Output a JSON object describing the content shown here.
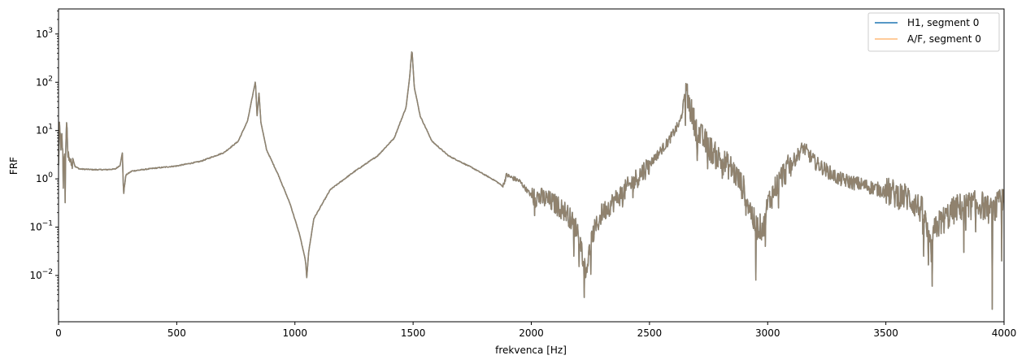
{
  "chart_data": {
    "type": "line",
    "xlabel": "frekvenca [Hz]",
    "ylabel": "FRF",
    "xlim": [
      0,
      4000
    ],
    "ylim": [
      0.0011,
      3300
    ],
    "yscale": "log",
    "xticks": [
      {
        "value": 0,
        "label": "0"
      },
      {
        "value": 500,
        "label": "500"
      },
      {
        "value": 1000,
        "label": "1000"
      },
      {
        "value": 1500,
        "label": "1500"
      },
      {
        "value": 2000,
        "label": "2000"
      },
      {
        "value": 2500,
        "label": "2500"
      },
      {
        "value": 3000,
        "label": "3000"
      },
      {
        "value": 3500,
        "label": "3500"
      },
      {
        "value": 4000,
        "label": "4000"
      }
    ],
    "yticks": [
      {
        "value": 0.01,
        "mant": "10",
        "exp": "−2"
      },
      {
        "value": 0.1,
        "mant": "10",
        "exp": "−1"
      },
      {
        "value": 1,
        "mant": "10",
        "exp": "0"
      },
      {
        "value": 10,
        "mant": "10",
        "exp": "1"
      },
      {
        "value": 100,
        "mant": "10",
        "exp": "2"
      },
      {
        "value": 1000,
        "mant": "10",
        "exp": "3"
      }
    ],
    "grid": false,
    "legend_position": "top-right",
    "series": [
      {
        "name": "H1, segment 0",
        "color": "#1f77b4",
        "opacity": 1.0
      },
      {
        "name": "A/F, segment 0",
        "color": "#ffbb78",
        "opacity": 1.0
      }
    ],
    "envelope_points": [
      [
        0,
        1.6
      ],
      [
        5,
        20
      ],
      [
        10,
        3
      ],
      [
        15,
        10
      ],
      [
        20,
        1.0
      ],
      [
        25,
        5
      ],
      [
        28,
        0.33
      ],
      [
        33,
        27
      ],
      [
        37,
        4
      ],
      [
        42,
        2.5
      ],
      [
        50,
        1.9
      ],
      [
        60,
        2.7
      ],
      [
        70,
        1.8
      ],
      [
        90,
        1.6
      ],
      [
        150,
        1.55
      ],
      [
        200,
        1.55
      ],
      [
        240,
        1.6
      ],
      [
        260,
        1.9
      ],
      [
        270,
        3.4
      ],
      [
        275,
        0.5
      ],
      [
        285,
        1.2
      ],
      [
        310,
        1.45
      ],
      [
        400,
        1.65
      ],
      [
        500,
        1.85
      ],
      [
        600,
        2.3
      ],
      [
        700,
        3.5
      ],
      [
        760,
        6
      ],
      [
        800,
        16
      ],
      [
        820,
        50
      ],
      [
        833,
        105
      ],
      [
        840,
        20
      ],
      [
        848,
        60
      ],
      [
        856,
        15
      ],
      [
        880,
        4
      ],
      [
        930,
        1.2
      ],
      [
        980,
        0.3
      ],
      [
        1020,
        0.07
      ],
      [
        1045,
        0.02
      ],
      [
        1050,
        0.009
      ],
      [
        1058,
        0.03
      ],
      [
        1080,
        0.15
      ],
      [
        1150,
        0.6
      ],
      [
        1250,
        1.4
      ],
      [
        1350,
        3
      ],
      [
        1420,
        7
      ],
      [
        1470,
        30
      ],
      [
        1485,
        120
      ],
      [
        1495,
        500
      ],
      [
        1505,
        80
      ],
      [
        1530,
        20
      ],
      [
        1580,
        6
      ],
      [
        1650,
        3
      ],
      [
        1750,
        1.7
      ],
      [
        1850,
        0.9
      ],
      [
        1880,
        0.7
      ],
      [
        1895,
        1.2
      ],
      [
        1910,
        1.1
      ],
      [
        1950,
        0.9
      ],
      [
        2000,
        0.45
      ],
      [
        2060,
        0.38
      ],
      [
        2100,
        0.3
      ],
      [
        2150,
        0.2
      ],
      [
        2200,
        0.08
      ],
      [
        2230,
        0.012
      ],
      [
        2260,
        0.07
      ],
      [
        2300,
        0.2
      ],
      [
        2400,
        0.6
      ],
      [
        2500,
        2
      ],
      [
        2580,
        6
      ],
      [
        2630,
        15
      ],
      [
        2655,
        70
      ],
      [
        2665,
        40
      ],
      [
        2700,
        10
      ],
      [
        2780,
        3
      ],
      [
        2850,
        1.6
      ],
      [
        2900,
        0.6
      ],
      [
        2950,
        0.1
      ],
      [
        2985,
        0.1
      ],
      [
        3000,
        0.3
      ],
      [
        3050,
        1.0
      ],
      [
        3100,
        2.0
      ],
      [
        3150,
        4.5
      ],
      [
        3200,
        2.2
      ],
      [
        3300,
        1.0
      ],
      [
        3400,
        0.75
      ],
      [
        3500,
        0.55
      ],
      [
        3600,
        0.4
      ],
      [
        3660,
        0.2
      ],
      [
        3690,
        0.03
      ],
      [
        3710,
        0.1
      ],
      [
        3800,
        0.25
      ],
      [
        3900,
        0.3
      ],
      [
        3950,
        0.2
      ],
      [
        4000,
        0.4
      ]
    ],
    "dips": [
      [
        28,
        0.32
      ],
      [
        275,
        0.5
      ],
      [
        1050,
        0.009
      ],
      [
        2230,
        0.009
      ],
      [
        2180,
        0.025
      ],
      [
        2950,
        0.008
      ],
      [
        2990,
        0.04
      ],
      [
        3045,
        0.25
      ],
      [
        3660,
        0.025
      ],
      [
        3695,
        0.006
      ],
      [
        3830,
        0.03
      ],
      [
        3880,
        0.08
      ],
      [
        3950,
        0.002
      ],
      [
        3990,
        0.02
      ]
    ]
  }
}
